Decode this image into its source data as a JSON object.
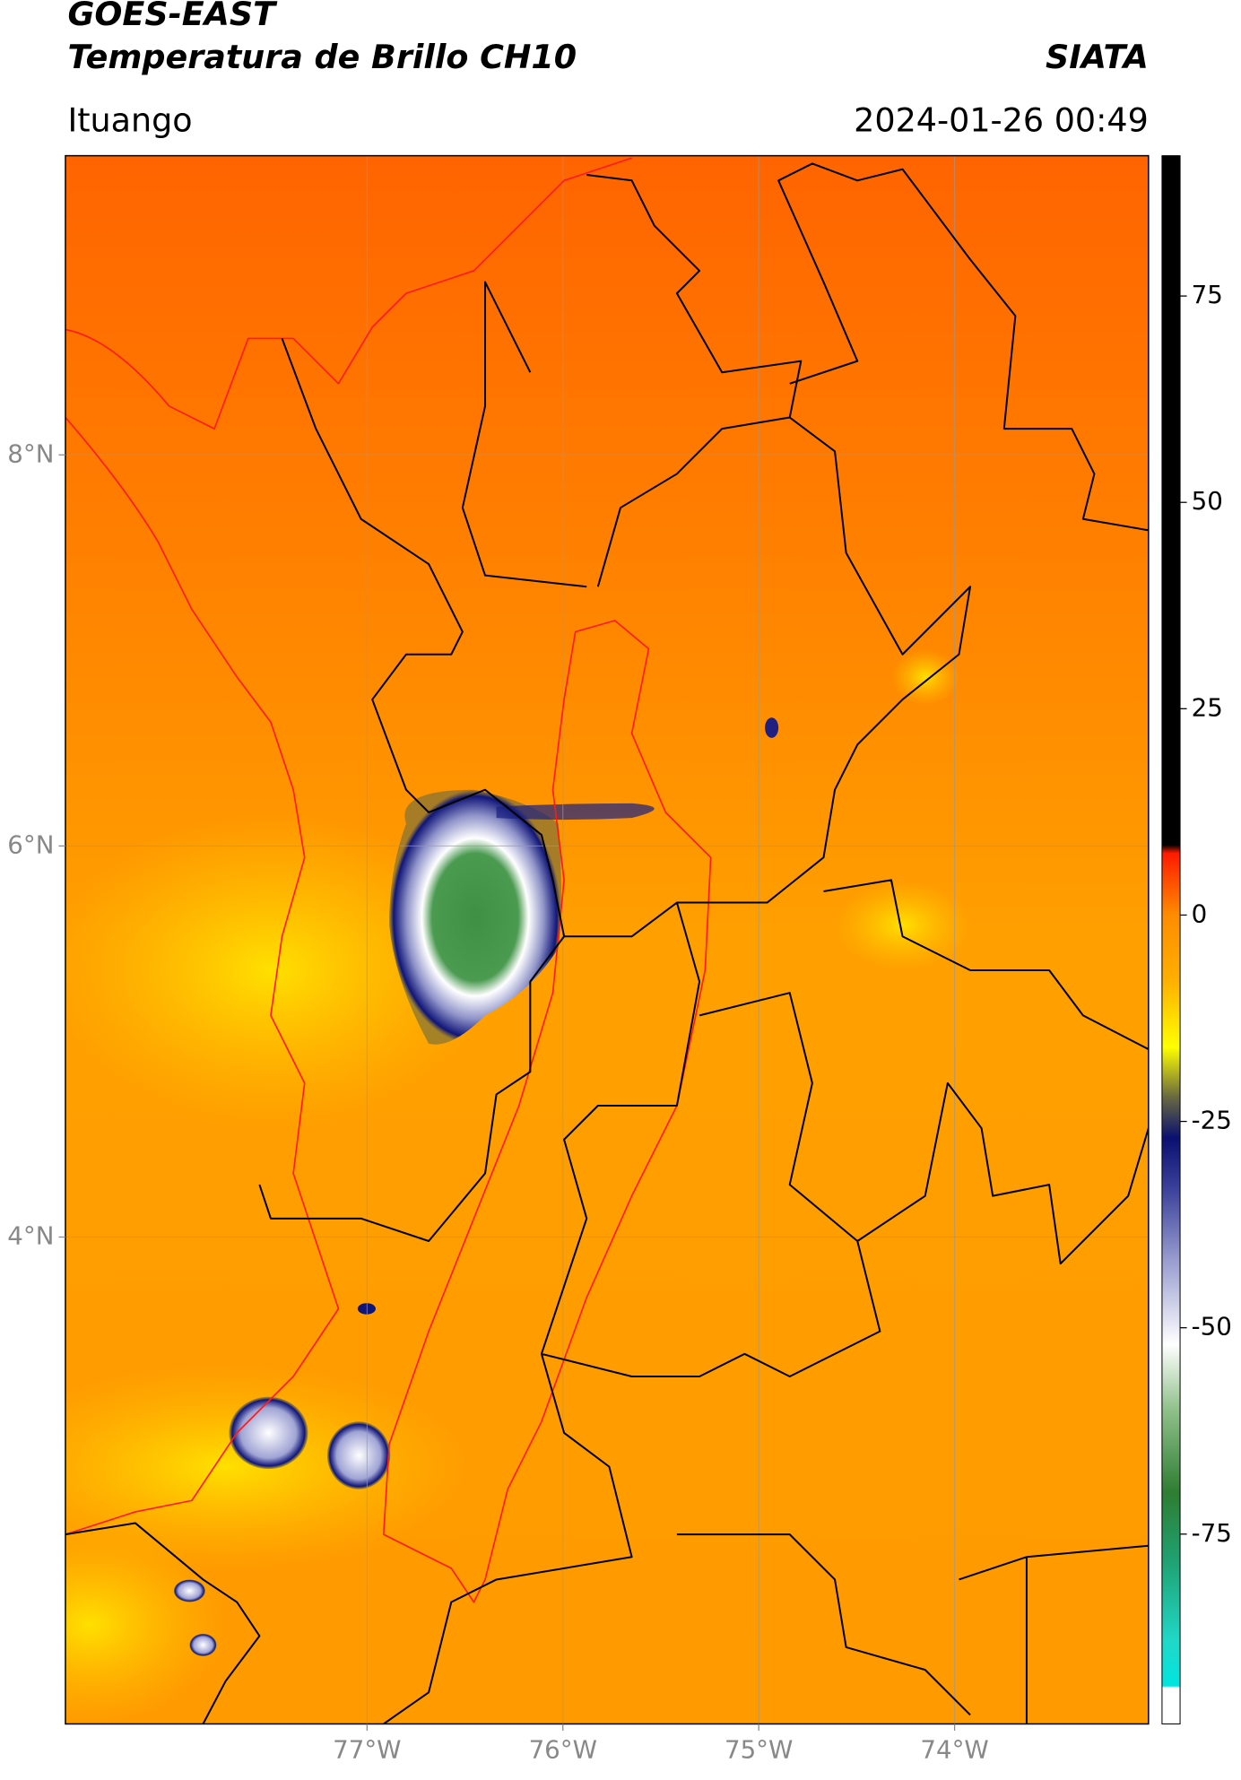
{
  "header": {
    "title": "GOES-EAST",
    "subtitle": "Temperatura de Brillo CH10",
    "source": "SIATA",
    "location": "Ituango",
    "datetime": "2024-01-26 00:49"
  },
  "map": {
    "xlim": [
      -78.54,
      -73.01
    ],
    "ylim": [
      1.51,
      9.53
    ],
    "xticks": [
      {
        "value": -77,
        "label": "77°W"
      },
      {
        "value": -76,
        "label": "76°W"
      },
      {
        "value": -75,
        "label": "75°W"
      },
      {
        "value": -74,
        "label": "74°W"
      }
    ],
    "yticks": [
      {
        "value": 4,
        "label": "4°N"
      },
      {
        "value": 6,
        "label": "6°N"
      },
      {
        "value": 8,
        "label": "8°N"
      }
    ],
    "grid": true
  },
  "colorbar": {
    "ylim": [
      -98,
      92
    ],
    "yticks": [
      -75,
      -50,
      -25,
      0,
      25,
      50,
      75
    ],
    "stops": [
      {
        "value": -98,
        "color": "#ffffff"
      },
      {
        "value": -93.6,
        "color": "#ffffff"
      },
      {
        "value": -93.4,
        "color": "#00e5e0"
      },
      {
        "value": -88,
        "color": "#20d8c8"
      },
      {
        "value": -78,
        "color": "#20a070"
      },
      {
        "value": -70,
        "color": "#2e7d32"
      },
      {
        "value": -60,
        "color": "#8fc08a"
      },
      {
        "value": -52,
        "color": "#ffffff"
      },
      {
        "value": -42,
        "color": "#9a9ed0"
      },
      {
        "value": -33,
        "color": "#3a3f9a"
      },
      {
        "value": -27,
        "color": "#0a1070"
      },
      {
        "value": -22,
        "color": "#6a6a40"
      },
      {
        "value": -16,
        "color": "#ffff00"
      },
      {
        "value": -8,
        "color": "#ffb000"
      },
      {
        "value": 0,
        "color": "#ff8c00"
      },
      {
        "value": 7.5,
        "color": "#ff1a00"
      },
      {
        "value": 8.5,
        "color": "#000000"
      },
      {
        "value": 92,
        "color": "#000000"
      }
    ]
  }
}
